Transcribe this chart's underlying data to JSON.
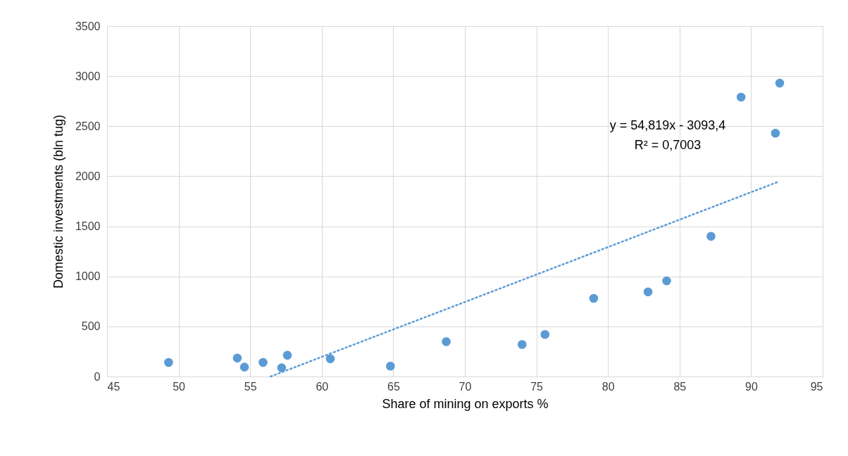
{
  "chart_data": {
    "type": "scatter",
    "xlabel": "Share of mining on exports %",
    "ylabel": "Domestic investments (bln tug)",
    "xlim": [
      45,
      95
    ],
    "xticks": [
      45,
      50,
      55,
      60,
      65,
      70,
      75,
      80,
      85,
      90,
      95
    ],
    "ylim": [
      0,
      3500
    ],
    "yticks": [
      0,
      500,
      1000,
      1500,
      2000,
      2500,
      3000,
      3500
    ],
    "grid": true,
    "annotations": [
      "y = 54,819x - 3093,4",
      "R² = 0,7003"
    ],
    "series": [
      {
        "color": "#5b9bd5",
        "marker": "circle",
        "x": [
          49.3,
          54.1,
          54.6,
          55.9,
          57.2,
          57.6,
          60.6,
          64.8,
          68.7,
          74.0,
          75.6,
          79.0,
          82.8,
          84.1,
          87.2,
          89.3,
          91.7,
          92.0
        ],
        "values": [
          140,
          184,
          94,
          140,
          87,
          212,
          177,
          104,
          348,
          320,
          420,
          780,
          845,
          955,
          1400,
          2790,
          2430,
          2930
        ]
      },
      {
        "type": "line",
        "color": "#5b9bd5",
        "line_style": "dotted",
        "x": [
          56.43,
          91.8
        ],
        "values": [
          0,
          1939
        ]
      }
    ]
  }
}
